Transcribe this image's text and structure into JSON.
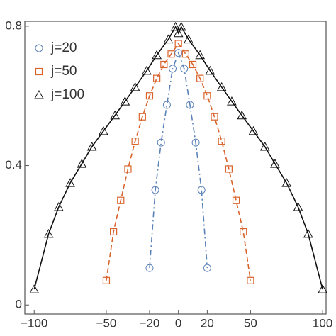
{
  "chart_data": {
    "type": "scatter",
    "xlim": [
      -106.5,
      102.4
    ],
    "ylim": [
      -0.026,
      0.814
    ],
    "xticks": [
      {
        "value": -100,
        "label": "−100"
      },
      {
        "value": -50,
        "label": "−50"
      },
      {
        "value": -20,
        "label": "−20"
      },
      0,
      20,
      50,
      100
    ],
    "yticks": [
      0,
      0.4,
      0.8
    ],
    "legend": "top-left",
    "series": [
      {
        "name": "j=20",
        "color": "#5b82b8",
        "marker": "circle",
        "line": "dashdot",
        "x": [
          -20,
          -16,
          -12,
          -8,
          -4,
          0,
          4,
          8,
          12,
          16,
          20
        ],
        "values": [
          0.106,
          0.33,
          0.466,
          0.574,
          0.678,
          0.723,
          0.678,
          0.574,
          0.466,
          0.33,
          0.106
        ]
      },
      {
        "name": "j=50",
        "color": "#d9632b",
        "marker": "square",
        "line": "dashed",
        "x": [
          -50,
          -45,
          -40,
          -35,
          -30,
          -25,
          -20,
          -15,
          -10,
          -5,
          0,
          5,
          10,
          15,
          20,
          25,
          30,
          35,
          40,
          45,
          50
        ],
        "values": [
          0.07,
          0.21,
          0.3,
          0.39,
          0.47,
          0.54,
          0.6,
          0.65,
          0.69,
          0.72,
          0.75,
          0.72,
          0.69,
          0.65,
          0.6,
          0.54,
          0.47,
          0.39,
          0.3,
          0.21,
          0.07
        ]
      },
      {
        "name": "j=100",
        "color": "#111111",
        "marker": "triangle",
        "line": "solid",
        "x": [
          -100,
          -90,
          -83,
          -75,
          -67,
          -60,
          -52,
          -44,
          -37,
          -30,
          -22,
          -15,
          -7,
          -2,
          0,
          2,
          7,
          15,
          22,
          30,
          37,
          44,
          52,
          60,
          67,
          75,
          83,
          90,
          100
        ],
        "values": [
          0.045,
          0.204,
          0.281,
          0.35,
          0.405,
          0.454,
          0.499,
          0.544,
          0.584,
          0.625,
          0.672,
          0.717,
          0.762,
          0.798,
          0.78,
          0.798,
          0.762,
          0.717,
          0.672,
          0.625,
          0.584,
          0.544,
          0.499,
          0.454,
          0.405,
          0.35,
          0.281,
          0.204,
          0.045
        ]
      }
    ]
  }
}
